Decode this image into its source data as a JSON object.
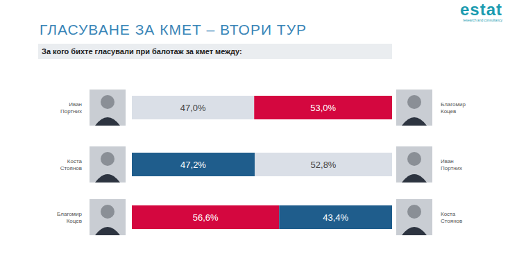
{
  "chart_data": {
    "type": "bar",
    "orientation": "horizontal",
    "stacked": true,
    "data_labels": true,
    "tick_labels": false,
    "title": "ГЛАСУВАНЕ ЗА КМЕТ – ВТОРИ ТУР",
    "subtitle": "За кого бихте гласували при балотаж за кмет между:",
    "logo": {
      "text": "estat",
      "tagline": "research and consultancy"
    },
    "xlim": [
      0,
      100
    ],
    "rows": [
      {
        "left": "Иван\nПортних",
        "right": "Благомир\nКоцев",
        "values": [
          47.0,
          53.0
        ],
        "value_labels": [
          "47,0%",
          "53,0%"
        ],
        "colors": [
          "#dadfe7",
          "#d4073f"
        ]
      },
      {
        "left": "Коста\nСтоянов",
        "right": "Иван\nПортних",
        "values": [
          47.2,
          52.8
        ],
        "value_labels": [
          "47,2%",
          "52,8%"
        ],
        "colors": [
          "#1f5d8c",
          "#dadfe7"
        ]
      },
      {
        "left": "Благомир\nКоцев",
        "right": "Коста\nСтоянов",
        "values": [
          56.6,
          43.4
        ],
        "value_labels": [
          "56,6%",
          "43,4%"
        ],
        "colors": [
          "#d4073f",
          "#1f5d8c"
        ]
      }
    ]
  }
}
